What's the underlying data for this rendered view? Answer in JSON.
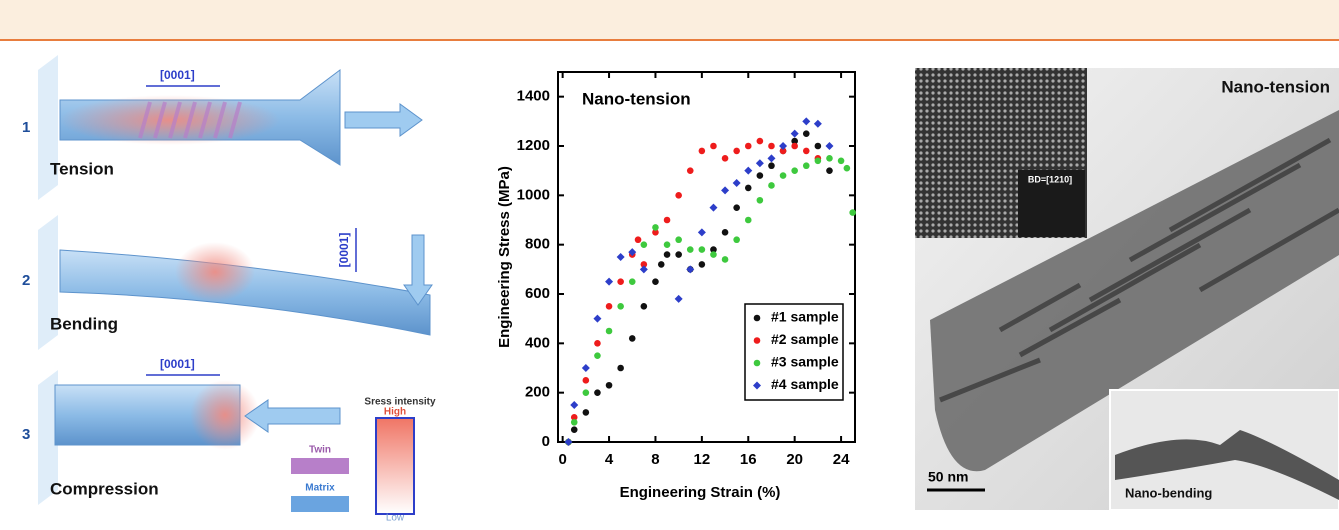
{
  "left_panel": {
    "steps": [
      {
        "number": "1",
        "label": "Tension",
        "direction": "[0001]"
      },
      {
        "number": "2",
        "label": "Bending",
        "direction": "[0001]"
      },
      {
        "number": "3",
        "label": "Compression",
        "direction": "[0001]"
      }
    ],
    "legend": {
      "title": "Sress intensity",
      "high": "High",
      "low": "Low",
      "twin": "Twin",
      "matrix": "Matrix"
    }
  },
  "chart_data": {
    "type": "scatter",
    "title": "Nano-tension",
    "x_label": "Engineering Strain (%)",
    "y_label": "Engineering Stress (MPa)",
    "xlim": [
      -0.4,
      25.2
    ],
    "ylim": [
      0,
      1500
    ],
    "xticks": [
      0,
      4,
      8,
      12,
      16,
      20,
      24
    ],
    "yticks": [
      0,
      200,
      400,
      600,
      800,
      1000,
      1200,
      1400
    ],
    "legend": "lower right",
    "series": [
      {
        "name": "#1 sample",
        "color": "#111111",
        "marker": "circle",
        "x": [
          0.5,
          1,
          2,
          3,
          4,
          5,
          6,
          7,
          8,
          8.5,
          9,
          10,
          11,
          12,
          13,
          14,
          15,
          16,
          17,
          18,
          19,
          20,
          21,
          22,
          23
        ],
        "values": [
          0,
          50,
          120,
          200,
          230,
          300,
          420,
          550,
          650,
          720,
          760,
          760,
          700,
          720,
          780,
          850,
          950,
          1030,
          1080,
          1120,
          1180,
          1220,
          1250,
          1200,
          1100
        ]
      },
      {
        "name": "#2 sample",
        "color": "#ee1c1c",
        "marker": "circle",
        "x": [
          0.5,
          1,
          2,
          3,
          4,
          5,
          6,
          6.5,
          7,
          8,
          9,
          10,
          11,
          12,
          13,
          14,
          15,
          16,
          17,
          18,
          19,
          20,
          21,
          22
        ],
        "values": [
          0,
          100,
          250,
          400,
          550,
          650,
          760,
          820,
          720,
          850,
          900,
          1000,
          1100,
          1180,
          1200,
          1150,
          1180,
          1200,
          1220,
          1200,
          1180,
          1200,
          1180,
          1150
        ]
      },
      {
        "name": "#3 sample",
        "color": "#3ec93e",
        "marker": "circle",
        "x": [
          0.5,
          1,
          2,
          3,
          4,
          5,
          6,
          7,
          8,
          9,
          10,
          11,
          12,
          13,
          14,
          15,
          16,
          17,
          18,
          19,
          20,
          21,
          22,
          23,
          24,
          24.5,
          25
        ],
        "values": [
          0,
          80,
          200,
          350,
          450,
          550,
          650,
          800,
          870,
          800,
          820,
          780,
          780,
          760,
          740,
          820,
          900,
          980,
          1040,
          1080,
          1100,
          1120,
          1140,
          1150,
          1140,
          1110,
          930
        ]
      },
      {
        "name": "#4 sample",
        "color": "#2d3ec9",
        "marker": "diamond",
        "x": [
          0.5,
          1,
          2,
          3,
          4,
          5,
          6,
          7,
          10,
          11,
          12,
          13,
          14,
          15,
          16,
          17,
          18,
          19,
          20,
          21,
          22,
          23
        ],
        "values": [
          0,
          150,
          300,
          500,
          650,
          750,
          770,
          700,
          580,
          700,
          850,
          950,
          1020,
          1050,
          1100,
          1130,
          1150,
          1200,
          1250,
          1300,
          1290,
          1200
        ]
      }
    ]
  },
  "right_panel": {
    "title": "Nano-tension",
    "diffraction": "BD=[1210]",
    "scale_bar": "50 nm",
    "inset": "Nano-bending"
  }
}
